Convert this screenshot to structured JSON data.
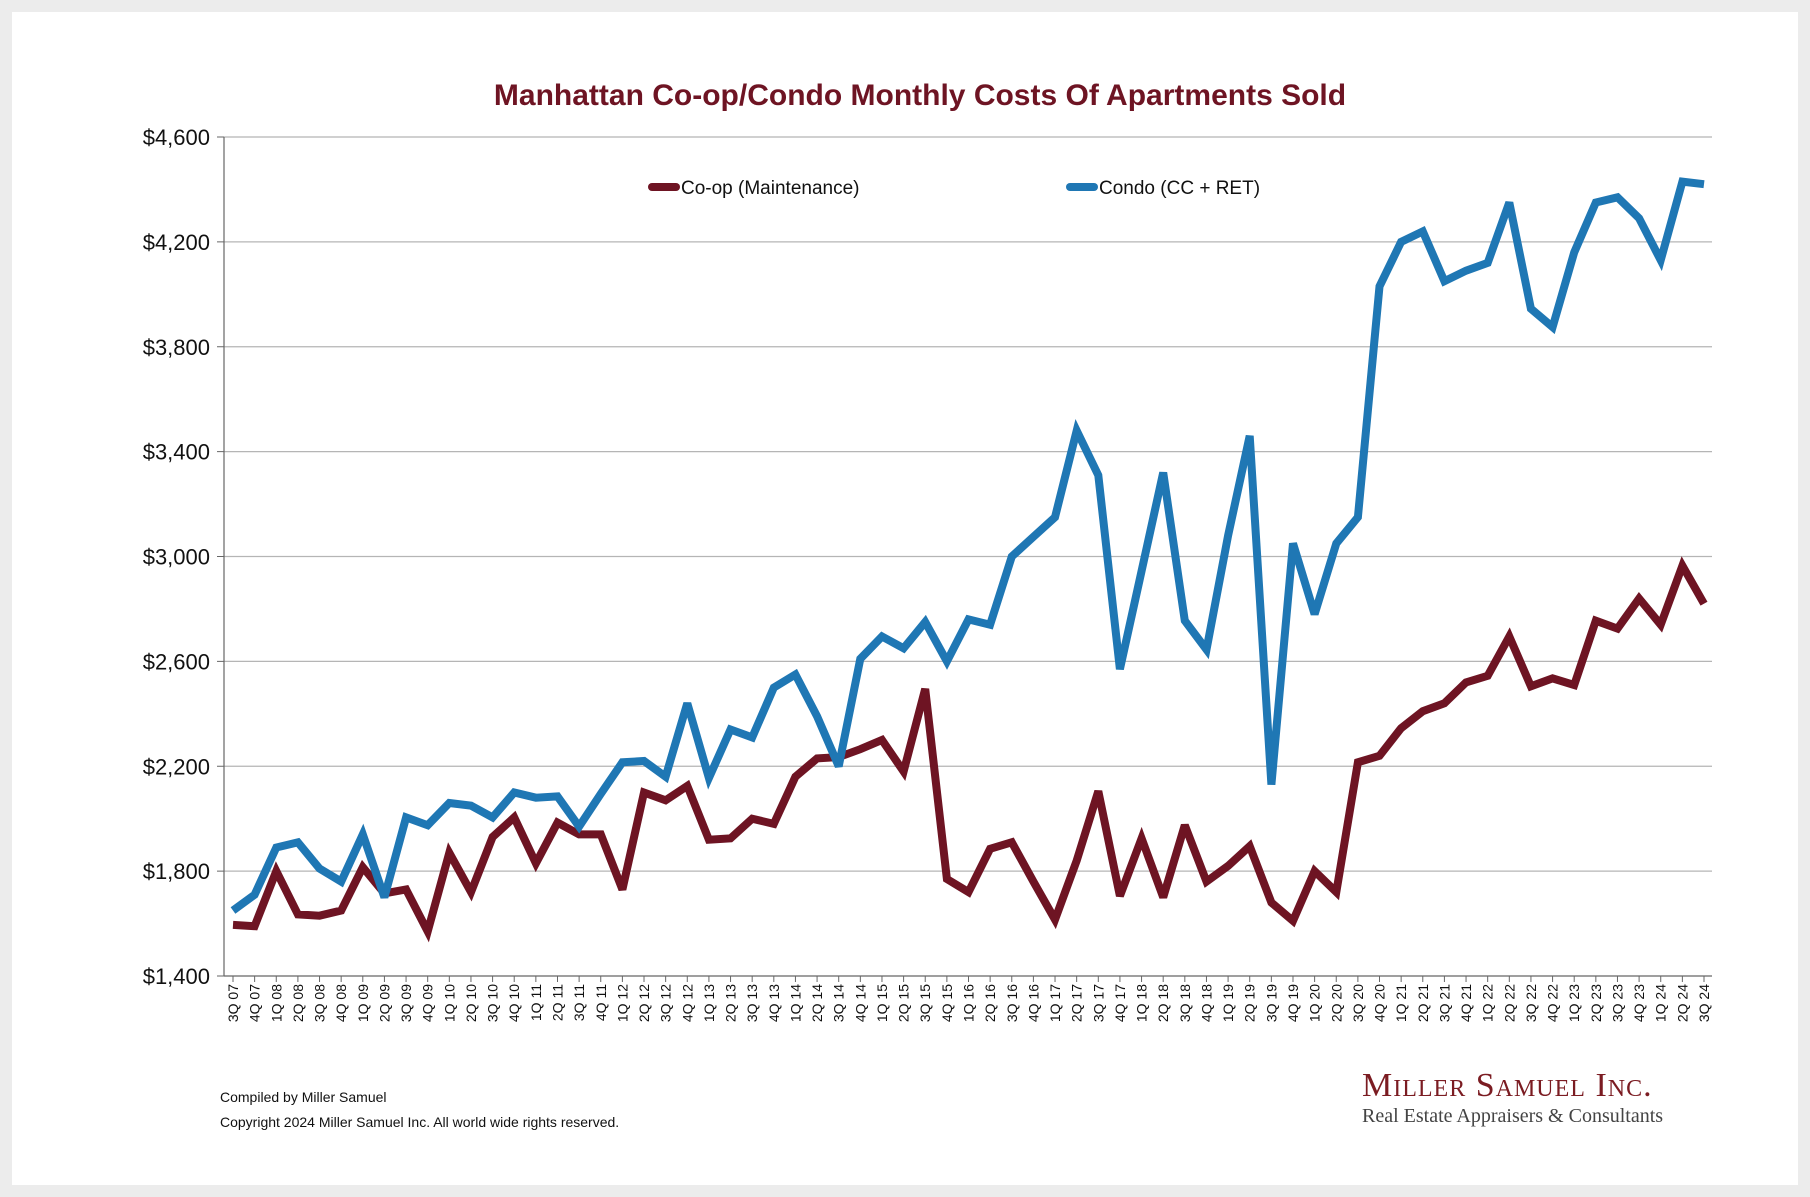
{
  "chart_data": {
    "type": "line",
    "title": "Manhattan Co-op/Condo Monthly Costs Of Apartments Sold",
    "xlabel": "",
    "ylabel": "",
    "ylim": [
      1400,
      4600
    ],
    "yticks": [
      1400,
      1800,
      2200,
      2600,
      3000,
      3400,
      3800,
      4200,
      4600
    ],
    "ytick_labels": [
      "$1,400",
      "$1,800",
      "$2,200",
      "$2,600",
      "$3,000",
      "$3,400",
      "$3,800",
      "$4,200",
      "$4,600"
    ],
    "grid": true,
    "legend_position": "top",
    "categories": [
      "3Q 07",
      "4Q 07",
      "1Q 08",
      "2Q 08",
      "3Q 08",
      "4Q 08",
      "1Q 09",
      "2Q 09",
      "3Q 09",
      "4Q 09",
      "1Q 10",
      "2Q 10",
      "3Q 10",
      "4Q 10",
      "1Q 11",
      "2Q 11",
      "3Q 11",
      "4Q 11",
      "1Q 12",
      "2Q 12",
      "3Q 12",
      "4Q 12",
      "1Q 13",
      "2Q 13",
      "3Q 13",
      "4Q 13",
      "1Q 14",
      "2Q 14",
      "3Q 14",
      "4Q 14",
      "1Q 15",
      "2Q 15",
      "3Q 15",
      "4Q 15",
      "1Q 16",
      "2Q 16",
      "3Q 16",
      "4Q 16",
      "1Q 17",
      "2Q 17",
      "3Q 17",
      "4Q 17",
      "1Q 18",
      "2Q 18",
      "3Q 18",
      "4Q 18",
      "1Q 19",
      "2Q 19",
      "3Q 19",
      "4Q 19",
      "1Q 20",
      "2Q 20",
      "3Q 20",
      "4Q 20",
      "1Q 21",
      "2Q 21",
      "3Q 21",
      "4Q 21",
      "1Q 22",
      "2Q 22",
      "3Q 22",
      "4Q 22",
      "1Q 23",
      "2Q 23",
      "3Q 23",
      "4Q 23",
      "1Q 24",
      "2Q 24",
      "3Q 24"
    ],
    "series": [
      {
        "name": "Co-op (Maintenance)",
        "color": "#6e1423",
        "values": [
          1595,
          1590,
          1800,
          1635,
          1630,
          1650,
          1815,
          1715,
          1730,
          1570,
          1870,
          1720,
          1930,
          2005,
          1830,
          1985,
          1940,
          1940,
          1730,
          2100,
          2070,
          2125,
          1920,
          1925,
          2000,
          1980,
          2160,
          2230,
          2235,
          2265,
          2300,
          2180,
          2495,
          1770,
          1720,
          1885,
          1910,
          1760,
          1615,
          1840,
          2105,
          1705,
          1925,
          1700,
          1975,
          1760,
          1820,
          1895,
          1680,
          1610,
          1800,
          1720,
          2215,
          2240,
          2345,
          2410,
          2440,
          2520,
          2545,
          2695,
          2505,
          2535,
          2510,
          2755,
          2725,
          2840,
          2740,
          2965,
          2820
        ]
      },
      {
        "name": "Condo (CC + RET)",
        "color": "#1f77b4",
        "values": [
          1650,
          1710,
          1890,
          1910,
          1810,
          1760,
          1940,
          1700,
          2005,
          1975,
          2060,
          2050,
          2005,
          2100,
          2080,
          2085,
          1970,
          2095,
          2215,
          2220,
          2160,
          2440,
          2155,
          2340,
          2310,
          2500,
          2550,
          2390,
          2200,
          2610,
          2695,
          2650,
          2750,
          2600,
          2760,
          2740,
          3000,
          3075,
          3150,
          3480,
          3310,
          2570,
          2945,
          3320,
          2755,
          2645,
          3080,
          3460,
          2130,
          3050,
          2780,
          3050,
          3150,
          4030,
          4200,
          4240,
          4050,
          4090,
          4120,
          4350,
          3945,
          3875,
          4160,
          4350,
          4370,
          4290,
          4130,
          4430,
          4420
        ]
      }
    ]
  },
  "footer": {
    "compiled_by": "Compiled by Miller Samuel",
    "copyright": "Copyright 2024 Miller Samuel Inc.  All world wide rights reserved."
  },
  "logo": {
    "name": "Miller Samuel Inc.",
    "tagline": "Real Estate Appraisers & Consultants"
  }
}
